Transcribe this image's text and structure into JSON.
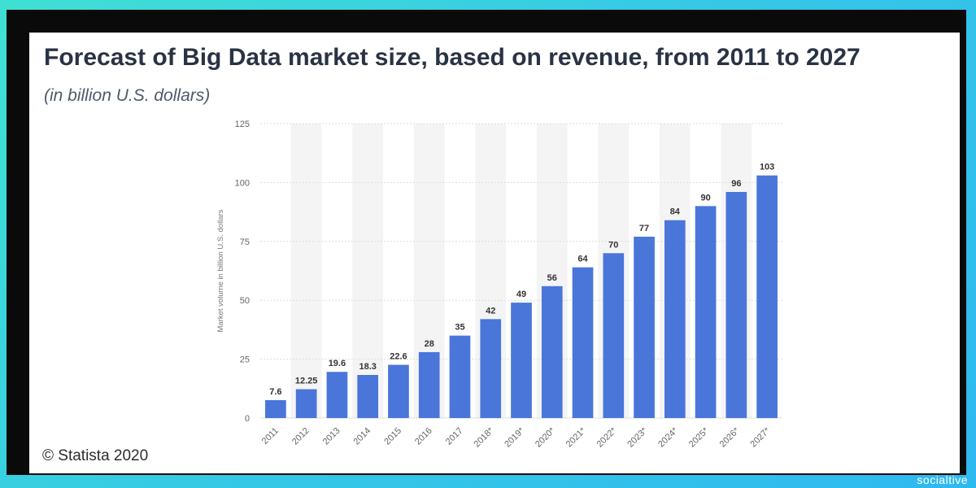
{
  "header": {
    "title": "Forecast of Big Data market size, based on revenue, from 2011 to 2027",
    "subtitle": "(in billion U.S. dollars)"
  },
  "footer": {
    "copyright": "© Statista 2020",
    "watermark": "socialtive"
  },
  "colors": {
    "bar": "#4a76da",
    "band": "#f4f4f4",
    "grid": "#dddddd",
    "background_frame": "#0a0a0a"
  },
  "chart_data": {
    "type": "bar",
    "title": "Forecast of Big Data market size, based on revenue, from 2011 to 2027",
    "subtitle": "(in billion U.S. dollars)",
    "xlabel": "",
    "ylabel": "Market volume in billion U.S. dollars",
    "ylim": [
      0,
      125
    ],
    "yticks": [
      0,
      25,
      50,
      75,
      100,
      125
    ],
    "grid": true,
    "categories": [
      "2011",
      "2012",
      "2013",
      "2014",
      "2015",
      "2016",
      "2017",
      "2018*",
      "2019*",
      "2020*",
      "2021*",
      "2022*",
      "2023*",
      "2024*",
      "2025*",
      "2026*",
      "2027*"
    ],
    "values": [
      7.6,
      12.25,
      19.6,
      18.3,
      22.6,
      28,
      35,
      42,
      49,
      56,
      64,
      70,
      77,
      84,
      90,
      96,
      103
    ],
    "value_labels": [
      "7.6",
      "12.25",
      "19.6",
      "18.3",
      "22.6",
      "28",
      "35",
      "42",
      "49",
      "56",
      "64",
      "70",
      "77",
      "84",
      "90",
      "96",
      "103"
    ]
  }
}
